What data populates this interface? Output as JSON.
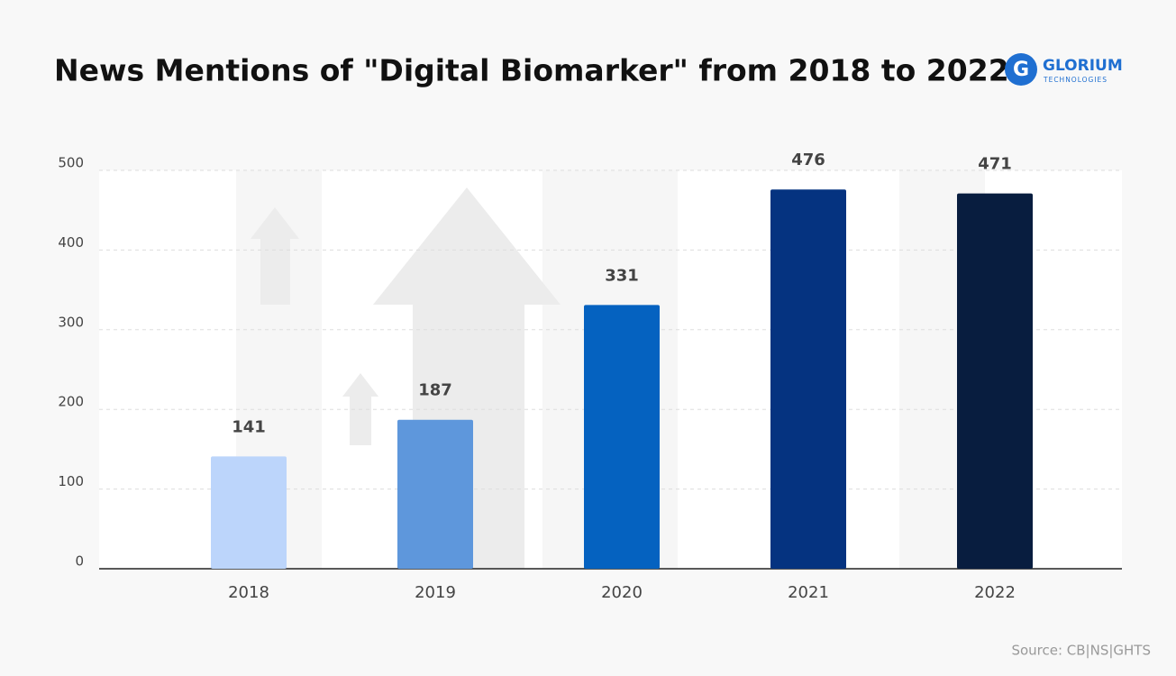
{
  "chart_data": {
    "type": "bar",
    "title": "News Mentions of \"Digital Biomarker\" from 2018 to 2022",
    "categories": [
      "2018",
      "2019",
      "2020",
      "2021",
      "2022"
    ],
    "values": [
      141,
      187,
      331,
      476,
      471
    ],
    "colors": [
      "#bcd5fb",
      "#5e97dc",
      "#0562c0",
      "#053380",
      "#081d3f"
    ],
    "ylim": [
      0,
      500
    ],
    "yticks": [
      0,
      100,
      200,
      300,
      400,
      500
    ],
    "grid": true,
    "source": "Source: CB|NS|GHTS"
  },
  "logo": {
    "name": "GLORIUM",
    "tagline": "TECHNOLOGIES"
  }
}
